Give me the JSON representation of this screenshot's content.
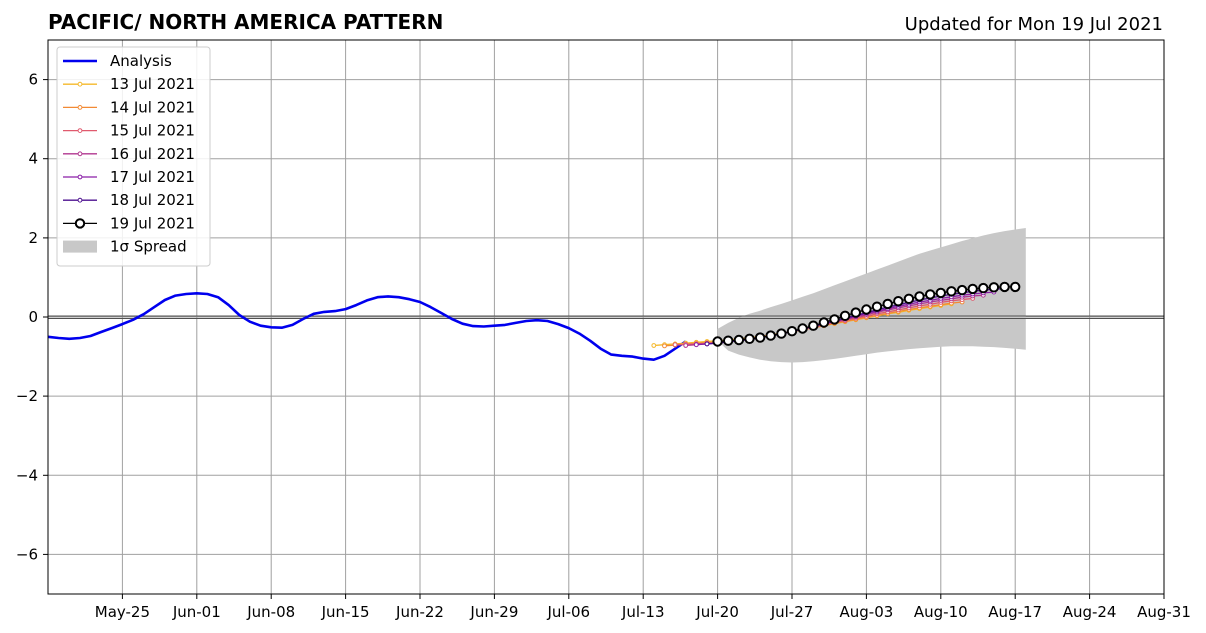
{
  "chart_data": {
    "type": "line",
    "title": "PACIFIC/ NORTH AMERICA PATTERN",
    "subtitle": "Updated for Mon 19 Jul 2021",
    "xlabel": "",
    "ylabel": "",
    "x_range": [
      "2021-05-18",
      "2021-08-31"
    ],
    "ylim": [
      -7,
      7
    ],
    "grid": true,
    "legend_position": "top-left",
    "x_tick_labels": [
      "May-25",
      "Jun-01",
      "Jun-08",
      "Jun-15",
      "Jun-22",
      "Jun-29",
      "Jul-06",
      "Jul-13",
      "Jul-20",
      "Jul-27",
      "Aug-03",
      "Aug-10",
      "Aug-17",
      "Aug-24",
      "Aug-31"
    ],
    "x_ticks": [
      "2021-05-25",
      "2021-06-01",
      "2021-06-08",
      "2021-06-15",
      "2021-06-22",
      "2021-06-29",
      "2021-07-06",
      "2021-07-13",
      "2021-07-20",
      "2021-07-27",
      "2021-08-03",
      "2021-08-10",
      "2021-08-17",
      "2021-08-24",
      "2021-08-31"
    ],
    "y_ticks": [
      -6,
      -4,
      -2,
      0,
      2,
      4,
      6
    ],
    "y_tick_labels": [
      "−6",
      "−4",
      "−2",
      "0",
      "2",
      "4",
      "6"
    ],
    "analysis": {
      "name": "Analysis",
      "color": "#0000ee",
      "start": "2021-05-18",
      "values": [
        -0.5,
        -0.53,
        -0.55,
        -0.53,
        -0.48,
        -0.38,
        -0.28,
        -0.18,
        -0.07,
        0.07,
        0.25,
        0.43,
        0.54,
        0.58,
        0.6,
        0.58,
        0.5,
        0.3,
        0.05,
        -0.12,
        -0.22,
        -0.26,
        -0.27,
        -0.2,
        -0.05,
        0.08,
        0.13,
        0.15,
        0.2,
        0.3,
        0.42,
        0.5,
        0.52,
        0.5,
        0.45,
        0.38,
        0.25,
        0.1,
        -0.05,
        -0.17,
        -0.23,
        -0.24,
        -0.22,
        -0.2,
        -0.15,
        -0.1,
        -0.08,
        -0.1,
        -0.18,
        -0.28,
        -0.42,
        -0.6,
        -0.8,
        -0.95,
        -0.98,
        -1.0,
        -1.05,
        -1.08,
        -0.98,
        -0.8,
        -0.62
      ]
    },
    "forecasts": [
      {
        "name": "13 Jul 2021",
        "color": "#f5b829",
        "start": "2021-07-14",
        "values": [
          -0.72,
          -0.7,
          -0.68,
          -0.66,
          -0.64,
          -0.62,
          -0.6,
          -0.58,
          -0.55,
          -0.52,
          -0.49,
          -0.45,
          -0.41,
          -0.37,
          -0.32,
          -0.27,
          -0.22,
          -0.17,
          -0.12,
          -0.07,
          -0.02,
          0.03,
          0.08,
          0.12,
          0.17,
          0.21,
          0.25,
          0.29,
          0.33
        ]
      },
      {
        "name": "14 Jul 2021",
        "color": "#f28a35",
        "start": "2021-07-15",
        "values": [
          -0.73,
          -0.71,
          -0.69,
          -0.67,
          -0.65,
          -0.63,
          -0.6,
          -0.57,
          -0.54,
          -0.5,
          -0.46,
          -0.42,
          -0.37,
          -0.32,
          -0.27,
          -0.22,
          -0.16,
          -0.11,
          -0.06,
          -0.01,
          0.04,
          0.09,
          0.14,
          0.19,
          0.23,
          0.27,
          0.31,
          0.35,
          0.38
        ]
      },
      {
        "name": "15 Jul 2021",
        "color": "#e05a6e",
        "start": "2021-07-16",
        "values": [
          -0.7,
          -0.69,
          -0.68,
          -0.66,
          -0.64,
          -0.61,
          -0.58,
          -0.55,
          -0.51,
          -0.47,
          -0.42,
          -0.37,
          -0.31,
          -0.26,
          -0.2,
          -0.14,
          -0.09,
          -0.03,
          0.02,
          0.08,
          0.13,
          0.18,
          0.23,
          0.28,
          0.32,
          0.37,
          0.41,
          0.44,
          0.47
        ]
      },
      {
        "name": "16 Jul 2021",
        "color": "#b0368f",
        "start": "2021-07-17",
        "values": [
          -0.72,
          -0.7,
          -0.68,
          -0.66,
          -0.63,
          -0.6,
          -0.56,
          -0.52,
          -0.47,
          -0.42,
          -0.36,
          -0.3,
          -0.24,
          -0.18,
          -0.12,
          -0.06,
          0.0,
          0.06,
          0.12,
          0.18,
          0.23,
          0.28,
          0.33,
          0.38,
          0.42,
          0.46,
          0.5,
          0.53,
          0.55
        ]
      },
      {
        "name": "17 Jul 2021",
        "color": "#8a1fa8",
        "start": "2021-07-18",
        "values": [
          -0.7,
          -0.68,
          -0.66,
          -0.63,
          -0.6,
          -0.56,
          -0.52,
          -0.47,
          -0.42,
          -0.36,
          -0.3,
          -0.24,
          -0.17,
          -0.11,
          -0.04,
          0.02,
          0.09,
          0.15,
          0.21,
          0.27,
          0.32,
          0.38,
          0.42,
          0.47,
          0.51,
          0.55,
          0.58,
          0.61,
          0.63
        ]
      },
      {
        "name": "18 Jul 2021",
        "color": "#4b0f8f",
        "start": "2021-07-19",
        "values": [
          -0.68,
          -0.66,
          -0.63,
          -0.6,
          -0.57,
          -0.53,
          -0.48,
          -0.43,
          -0.37,
          -0.31,
          -0.24,
          -0.17,
          -0.1,
          -0.03,
          0.04,
          0.11,
          0.18,
          0.25,
          0.31,
          0.37,
          0.43,
          0.48,
          0.53,
          0.57,
          0.61,
          0.65,
          0.68,
          0.7,
          0.72
        ]
      }
    ],
    "current": {
      "name": "19 Jul 2021",
      "color": "#000000",
      "start": "2021-07-20",
      "values": [
        -0.62,
        -0.6,
        -0.58,
        -0.55,
        -0.52,
        -0.47,
        -0.42,
        -0.36,
        -0.29,
        -0.22,
        -0.14,
        -0.06,
        0.03,
        0.11,
        0.19,
        0.26,
        0.33,
        0.4,
        0.46,
        0.52,
        0.57,
        0.61,
        0.65,
        0.68,
        0.71,
        0.73,
        0.75,
        0.76,
        0.76
      ]
    },
    "spread": {
      "name": "1σ Spread",
      "color": "#c8c8c8",
      "start": "2021-07-20",
      "lower": [
        -0.6,
        -0.85,
        -0.95,
        -1.02,
        -1.08,
        -1.12,
        -1.14,
        -1.15,
        -1.14,
        -1.12,
        -1.09,
        -1.06,
        -1.02,
        -0.98,
        -0.94,
        -0.9,
        -0.87,
        -0.84,
        -0.81,
        -0.79,
        -0.77,
        -0.75,
        -0.74,
        -0.74,
        -0.74,
        -0.75,
        -0.76,
        -0.78,
        -0.8,
        -0.83
      ],
      "upper": [
        -0.3,
        -0.15,
        -0.02,
        0.08,
        0.16,
        0.25,
        0.33,
        0.42,
        0.51,
        0.6,
        0.7,
        0.8,
        0.9,
        1.0,
        1.1,
        1.2,
        1.3,
        1.4,
        1.5,
        1.6,
        1.68,
        1.76,
        1.84,
        1.92,
        1.99,
        2.06,
        2.12,
        2.17,
        2.21,
        2.25
      ]
    }
  }
}
